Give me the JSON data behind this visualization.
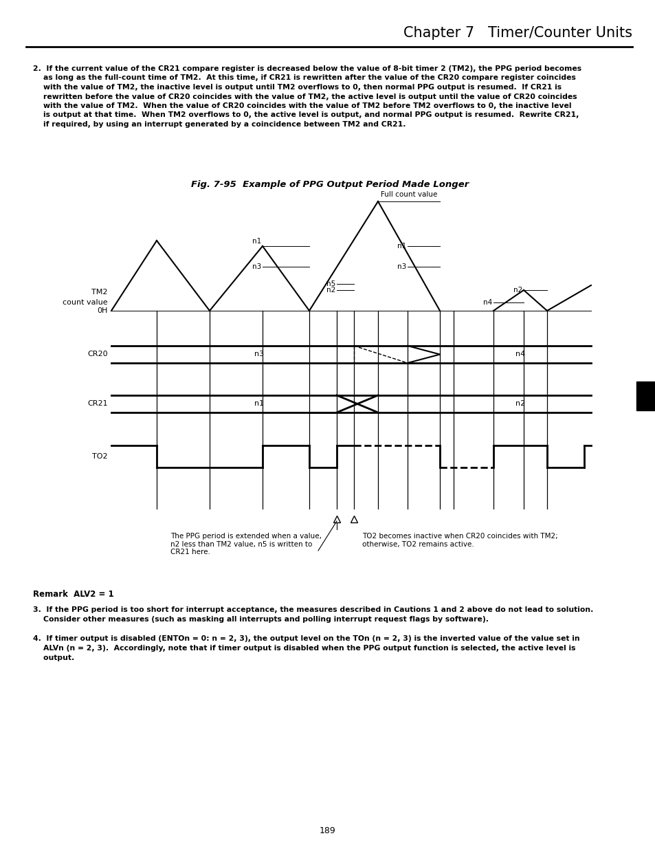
{
  "title": "Chapter 7   Timer/Counter Units",
  "fig_title": "Fig. 7-95  Example of PPG Output Period Made Longer",
  "page_number": "189",
  "bg_color": "#ffffff",
  "text_color": "#000000",
  "para2_lines": [
    "2.  If the current value of the CR21 compare register is decreased below the value of 8-bit timer 2 (TM2), the PPG period becomes",
    "    as long as the full-count time of TM2.  At this time, if CR21 is rewritten after the value of the CR20 compare register coincides",
    "    with the value of TM2, the inactive level is output until TM2 overflows to 0, then normal PPG output is resumed.  If CR21 is",
    "    rewritten before the value of CR20 coincides with the value of TM2, the active level is output until the value of CR20 coincides",
    "    with the value of TM2.  When the value of CR20 coincides with the value of TM2 before TM2 overflows to 0, the inactive level",
    "    is output at that time.  When TM2 overflows to 0, the active level is output, and normal PPG output is resumed.  Rewrite CR21,",
    "    if required, by using an interrupt generated by a coincidence between TM2 and CR21."
  ],
  "remark": "Remark  ALV2 = 1",
  "item3_lines": [
    "3.  If the PPG period is too short for interrupt acceptance, the measures described in Cautions 1 and 2 above do not lead to solution.",
    "    Consider other measures (such as masking all interrupts and polling interrupt request flags by software)."
  ],
  "item4_lines": [
    "4.  If timer output is disabled (ENTOn = 0: n = 2, 3), the output level on the TOn (n = 2, 3) is the inverted value of the value set in",
    "    ALVn (n = 2, 3).  Accordingly, note that if timer output is disabled when the PPG output function is selected, the active level is",
    "    output."
  ],
  "ann_left": "The PPG period is extended when a value,\nn2 less than TM2 value, n5 is written to\nCR21 here.",
  "ann_right": "TO2 becomes inactive when CR20 coincides with TM2;\notherwise, TO2 remains active."
}
